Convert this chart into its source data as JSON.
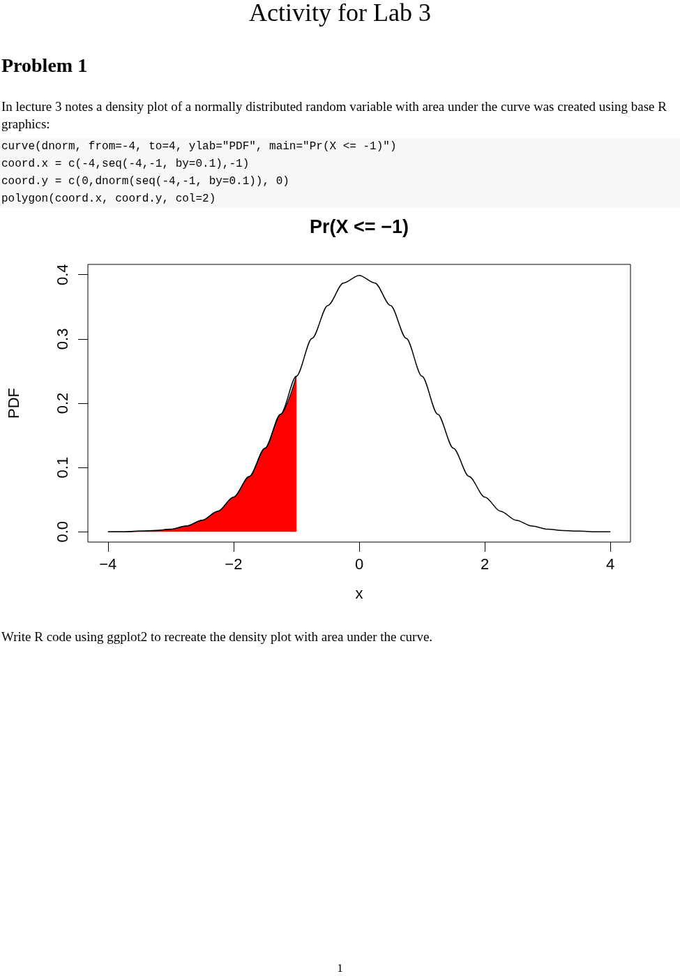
{
  "chart_data": {
    "type": "line",
    "title": "Pr(X <= −1)",
    "xlabel": "x",
    "ylabel": "PDF",
    "annotations": [
      "Activity for Lab 3",
      "Problem 1",
      "In lecture 3 notes a density plot of a normally distributed random variable with area under the curve was created using base R graphics:",
      "curve(dnorm, from=-4, to=4, ylab=\"PDF\", main=\"Pr(X <= -1)\")",
      "coord.x = c(-4,seq(-4,-1, by=0.1),-1)",
      "coord.y = c(0,dnorm(seq(-4,-1, by=0.1)), 0)",
      "polygon(coord.x, coord.y, col=2)",
      "Write R code using ggplot2 to recreate the density plot with area under the curve.",
      "1"
    ],
    "series": [
      {
        "type": "area",
        "color": "#ff0000",
        "x": [
          -4,
          -3.75,
          -3.5,
          -3.25,
          -3,
          -2.75,
          -2.5,
          -2.25,
          -2,
          -1.75,
          -1.5,
          -1.25,
          -1
        ],
        "values": [
          0.0,
          0.0,
          0.001,
          0.002,
          0.004,
          0.009,
          0.018,
          0.032,
          0.054,
          0.086,
          0.13,
          0.183,
          0.242
        ]
      },
      {
        "color": "#000000",
        "x": [
          -4,
          -3.75,
          -3.5,
          -3.25,
          -3,
          -2.75,
          -2.5,
          -2.25,
          -2,
          -1.75,
          -1.5,
          -1.25,
          -1,
          -0.75,
          -0.5,
          -0.25,
          0,
          0.25,
          0.5,
          0.75,
          1,
          1.25,
          1.5,
          1.75,
          2,
          2.25,
          2.5,
          2.75,
          3,
          3.25,
          3.5,
          3.75,
          4
        ],
        "values": [
          0.0,
          0.0,
          0.001,
          0.002,
          0.004,
          0.009,
          0.018,
          0.032,
          0.054,
          0.086,
          0.13,
          0.183,
          0.242,
          0.301,
          0.352,
          0.387,
          0.399,
          0.387,
          0.352,
          0.301,
          0.242,
          0.183,
          0.13,
          0.086,
          0.054,
          0.032,
          0.018,
          0.009,
          0.004,
          0.002,
          0.001,
          0.0,
          0.0
        ]
      }
    ],
    "xlim": [
      -4.32,
      4.32
    ],
    "xticks": [
      {
        "value": -4,
        "label": "−4"
      },
      {
        "value": -2,
        "label": "−2"
      },
      0,
      2,
      4
    ],
    "ylim": [
      -0.016,
      0.416
    ],
    "yticks": [
      {
        "value": 0,
        "label": "0.0"
      },
      0.1,
      0.2,
      0.3,
      0.4
    ],
    "grid": false,
    "marker": "none",
    "line_style": "solid"
  }
}
